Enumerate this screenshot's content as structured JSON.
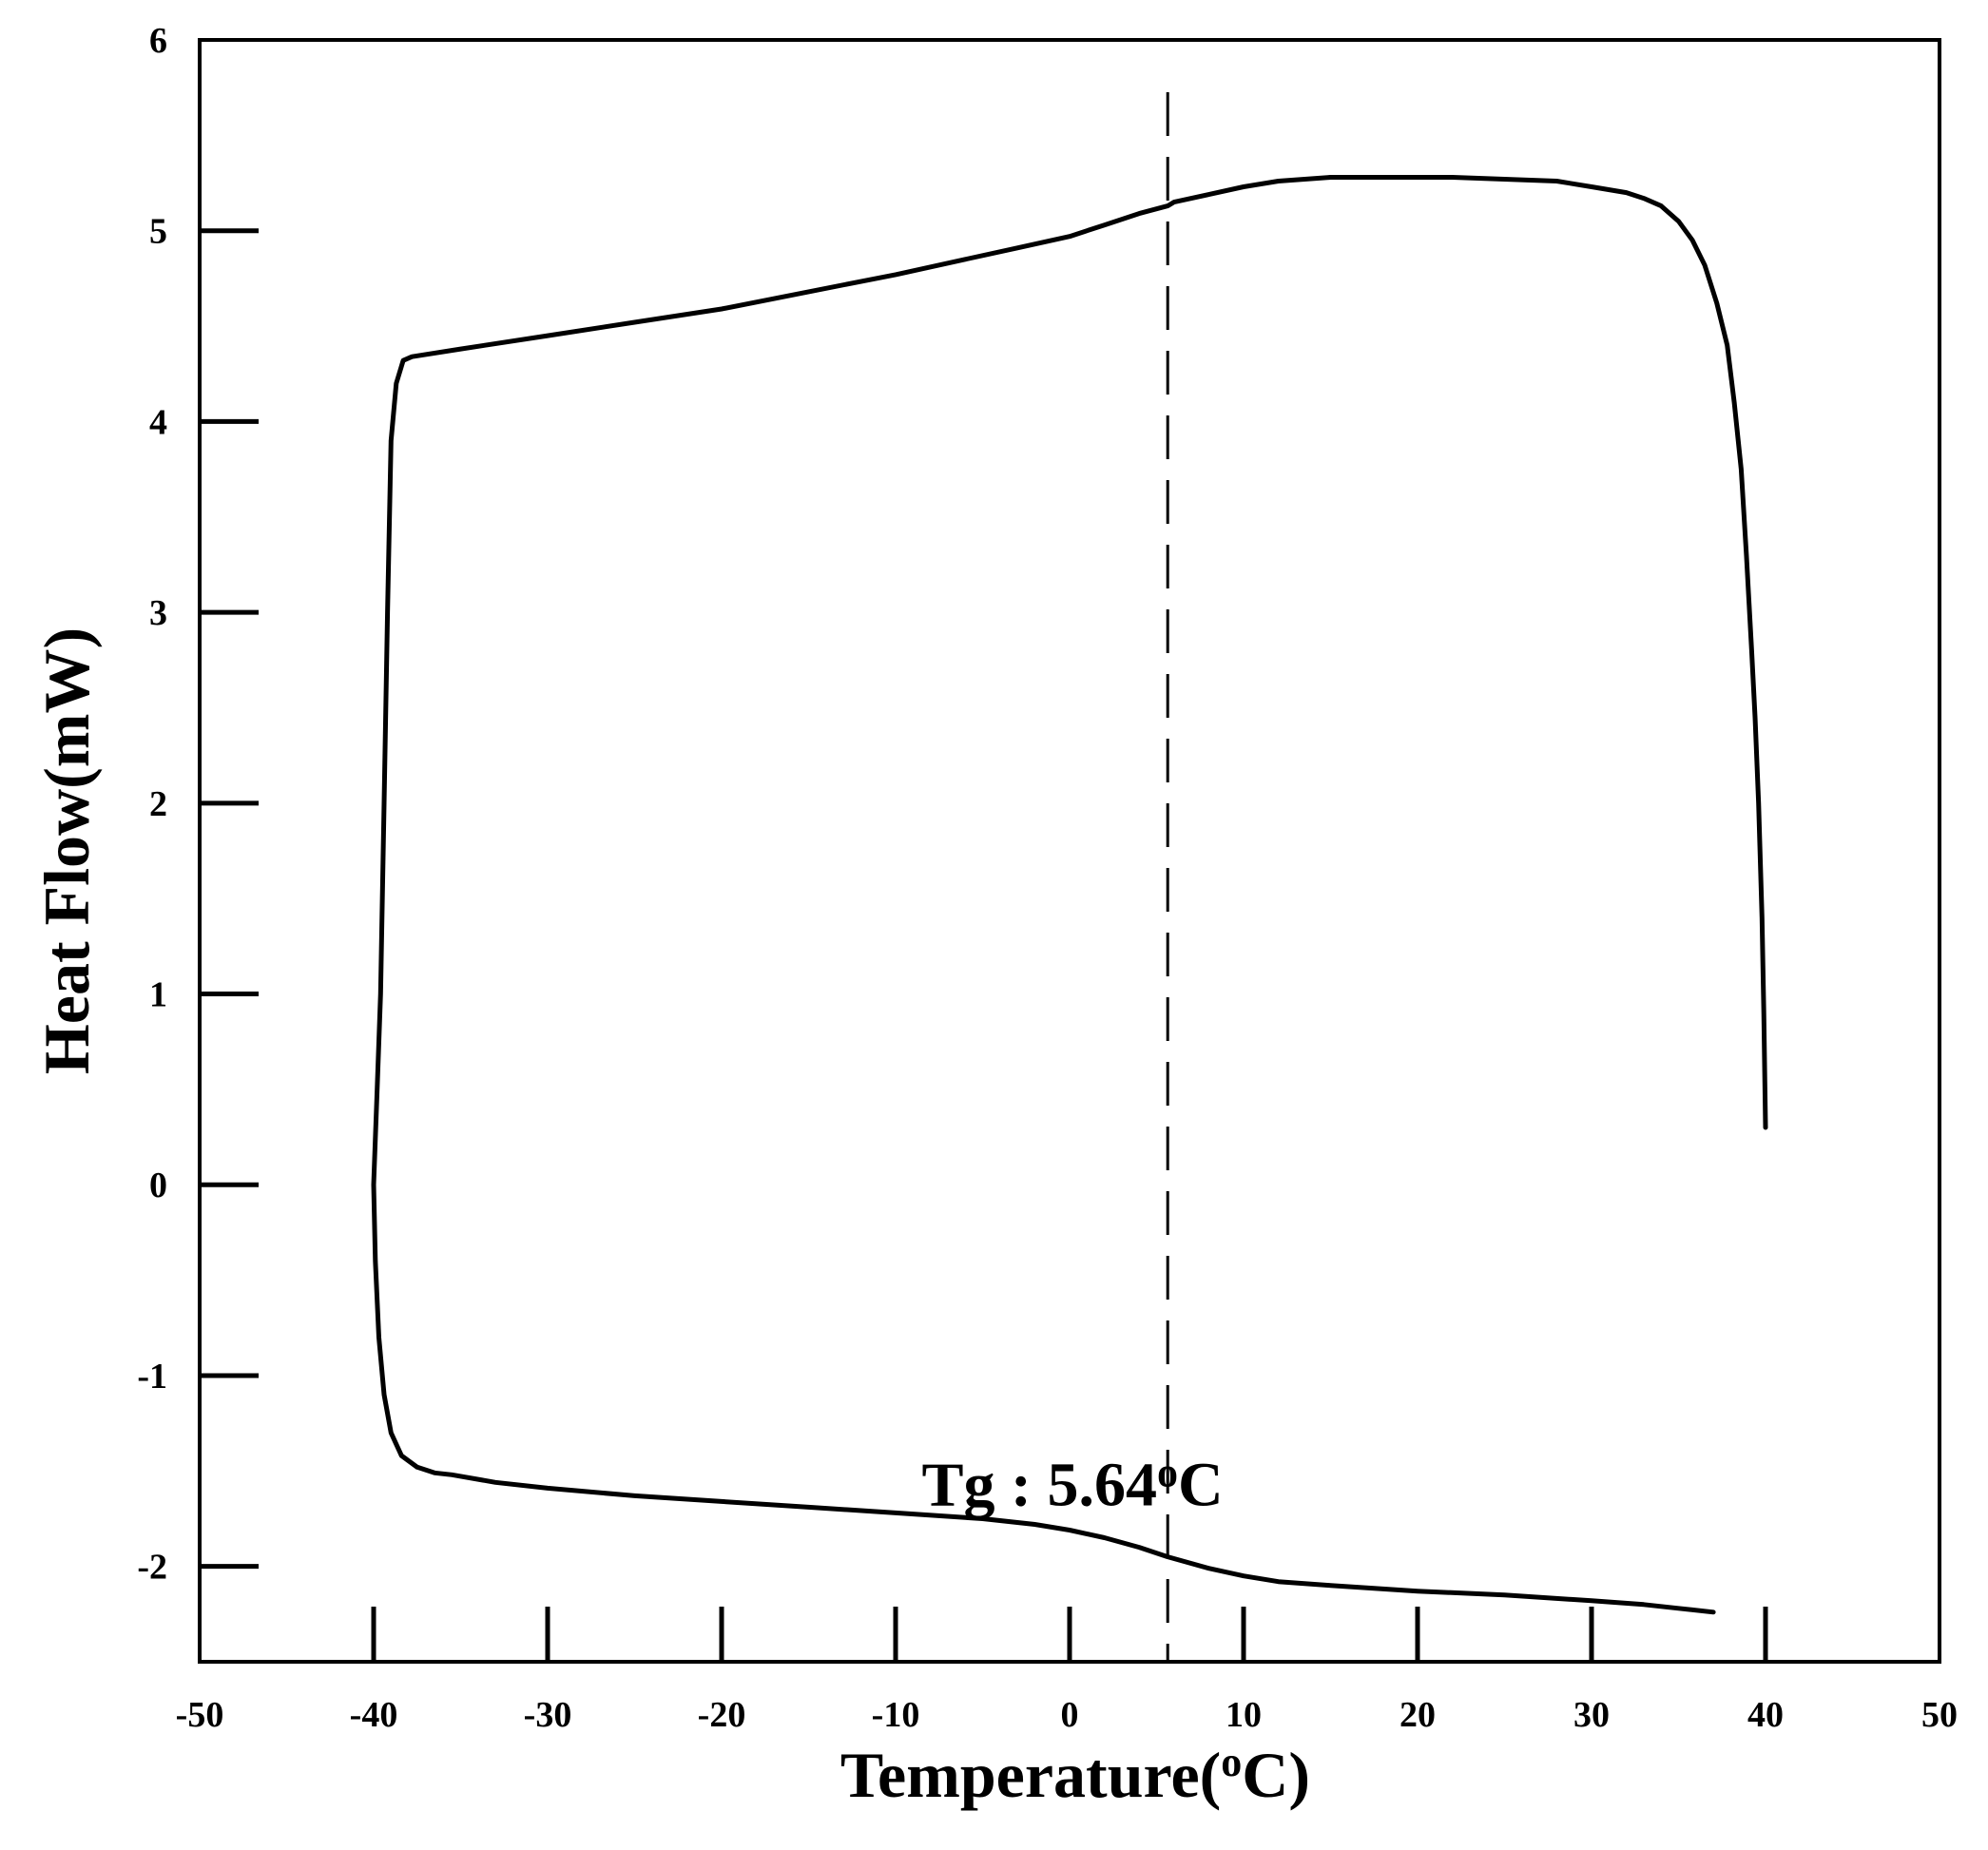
{
  "chart_data": {
    "type": "line",
    "xlabel": "Temperature",
    "xlabel_unit": "C",
    "ylabel": "Heat Flow(mW)",
    "xlim": [
      -50,
      50
    ],
    "ylim": [
      -2.5,
      6
    ],
    "xticks": [
      -50,
      -40,
      -30,
      -20,
      -10,
      0,
      10,
      20,
      30,
      40,
      50
    ],
    "yticks": [
      -2,
      -1,
      0,
      1,
      2,
      3,
      4,
      5,
      6
    ],
    "grid": false,
    "tg_value": 5.64,
    "annotation": {
      "prefix": "Tg : 5.64",
      "superscript": "o",
      "suffix": "C"
    },
    "series": [
      {
        "color": "#000000",
        "x": [
          40,
          39.9,
          39.8,
          39.6,
          39.4,
          39.2,
          38.9,
          38.6,
          38.2,
          37.8,
          37.2,
          36.5,
          35.8,
          35,
          34,
          33,
          32,
          30,
          28,
          25,
          22,
          18,
          15,
          12,
          10,
          8,
          6,
          5.64,
          4,
          2,
          0,
          -3,
          -6,
          -10,
          -15,
          -20,
          -25,
          -30,
          -35,
          -37.8,
          -38.3,
          -38.7,
          -39,
          -39.2,
          -39.4,
          -39.6,
          -39.8,
          -40,
          -39.9,
          -39.7,
          -39.4,
          -39,
          -38.4,
          -37.5,
          -36.5,
          -35.5,
          -33,
          -30,
          -25,
          -20,
          -15,
          -10,
          -5,
          -2,
          0,
          2,
          4,
          5.64,
          8,
          10,
          12,
          15,
          20,
          25,
          30,
          33,
          35,
          37
        ],
        "y": [
          0.3,
          0.9,
          1.4,
          2.0,
          2.45,
          2.8,
          3.3,
          3.75,
          4.1,
          4.4,
          4.62,
          4.82,
          4.95,
          5.05,
          5.13,
          5.17,
          5.2,
          5.23,
          5.26,
          5.27,
          5.28,
          5.28,
          5.28,
          5.26,
          5.23,
          5.19,
          5.15,
          5.13,
          5.09,
          5.03,
          4.97,
          4.91,
          4.85,
          4.77,
          4.68,
          4.59,
          4.52,
          4.45,
          4.38,
          4.34,
          4.32,
          4.2,
          3.9,
          3.0,
          2.0,
          1.0,
          0.5,
          0.0,
          -0.4,
          -0.8,
          -1.1,
          -1.3,
          -1.42,
          -1.48,
          -1.51,
          -1.52,
          -1.56,
          -1.59,
          -1.63,
          -1.66,
          -1.69,
          -1.72,
          -1.75,
          -1.78,
          -1.81,
          -1.85,
          -1.9,
          -1.95,
          -2.01,
          -2.05,
          -2.08,
          -2.1,
          -2.13,
          -2.15,
          -2.18,
          -2.2,
          -2.22,
          -2.24
        ]
      }
    ]
  }
}
